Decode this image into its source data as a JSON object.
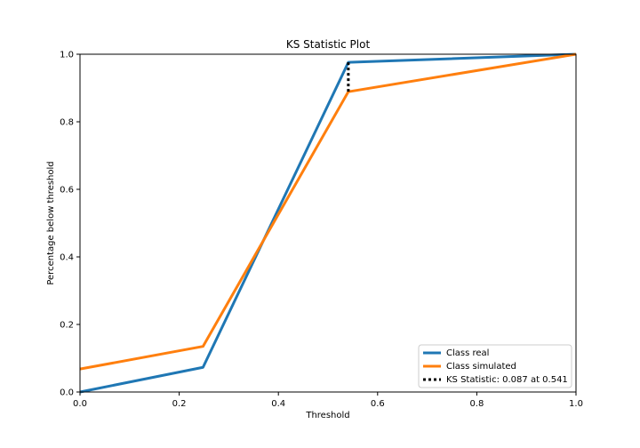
{
  "chart_data": {
    "type": "line",
    "title": "KS Statistic Plot",
    "xlabel": "Threshold",
    "ylabel": "Percentage below threshold",
    "xlim": [
      0.0,
      1.0
    ],
    "ylim": [
      0.0,
      1.0
    ],
    "xticks": [
      "0.0",
      "0.2",
      "0.4",
      "0.6",
      "0.8",
      "1.0"
    ],
    "yticks": [
      "0.0",
      "0.2",
      "0.4",
      "0.6",
      "0.8",
      "1.0"
    ],
    "grid": false,
    "legend_position": "bottom-right",
    "series": [
      {
        "name": "Class real",
        "color": "#1f77b4",
        "x": [
          0.0,
          0.248,
          0.541,
          1.0
        ],
        "y": [
          0.0,
          0.073,
          0.976,
          1.0
        ]
      },
      {
        "name": "Class simulated",
        "color": "#ff7f0e",
        "x": [
          0.0,
          0.248,
          0.541,
          1.0
        ],
        "y": [
          0.068,
          0.135,
          0.889,
          1.0
        ]
      }
    ],
    "ks_statistic": {
      "label": "KS Statistic: 0.087 at 0.541",
      "x": 0.541,
      "y_low": 0.889,
      "y_high": 0.976,
      "color": "#000000"
    }
  }
}
